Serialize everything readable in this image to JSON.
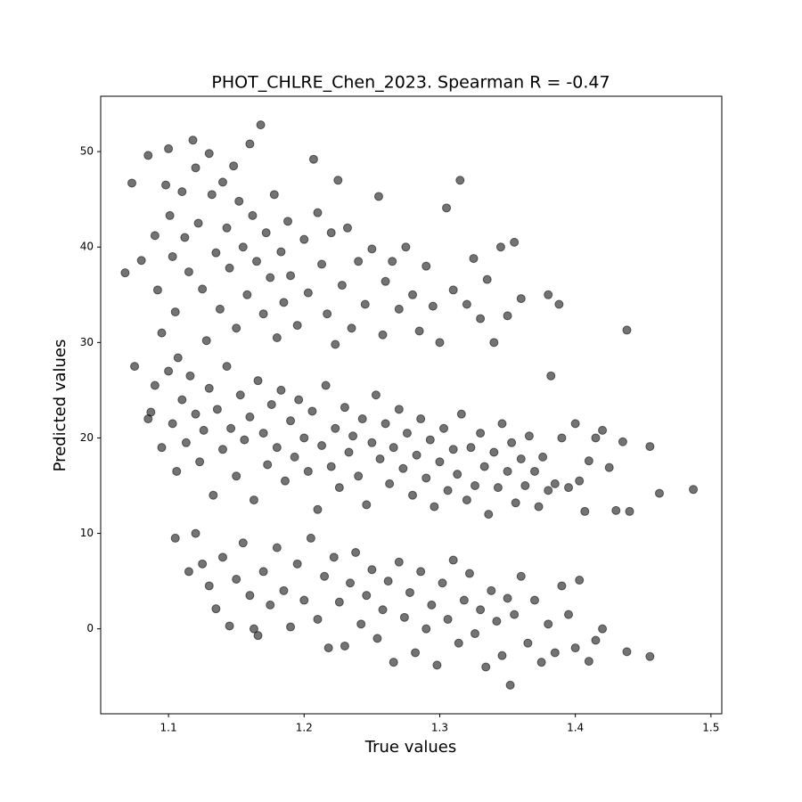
{
  "chart_data": {
    "type": "scatter",
    "title": "PHOT_CHLRE_Chen_2023. Spearman R = -0.47",
    "x_label": "True values",
    "y_label": "Predicted values",
    "color": "#000000",
    "opacity": 0.55,
    "xlim": [
      1.05,
      1.508
    ],
    "ylim": [
      -8.9,
      55.8
    ],
    "xticks": [
      1.1,
      1.2,
      1.3,
      1.4,
      1.5
    ],
    "yticks": [
      0,
      10,
      20,
      30,
      40,
      50
    ],
    "x": [
      1.068,
      1.073,
      1.075,
      1.08,
      1.085,
      1.087,
      1.09,
      1.092,
      1.095,
      1.098,
      1.1,
      1.101,
      1.103,
      1.105,
      1.107,
      1.11,
      1.112,
      1.115,
      1.118,
      1.12,
      1.122,
      1.125,
      1.128,
      1.13,
      1.132,
      1.135,
      1.138,
      1.14,
      1.143,
      1.145,
      1.148,
      1.15,
      1.152,
      1.155,
      1.158,
      1.16,
      1.162,
      1.165,
      1.168,
      1.17,
      1.172,
      1.175,
      1.178,
      1.18,
      1.183,
      1.185,
      1.188,
      1.19,
      1.195,
      1.2,
      1.203,
      1.207,
      1.21,
      1.213,
      1.217,
      1.22,
      1.223,
      1.225,
      1.228,
      1.232,
      1.235,
      1.24,
      1.245,
      1.25,
      1.255,
      1.258,
      1.26,
      1.265,
      1.27,
      1.275,
      1.28,
      1.285,
      1.29,
      1.295,
      1.3,
      1.305,
      1.31,
      1.315,
      1.32,
      1.325,
      1.33,
      1.335,
      1.34,
      1.345,
      1.35,
      1.355,
      1.36,
      1.38,
      1.388,
      1.382,
      1.438,
      1.085,
      1.09,
      1.095,
      1.1,
      1.103,
      1.106,
      1.11,
      1.113,
      1.116,
      1.12,
      1.123,
      1.126,
      1.13,
      1.133,
      1.136,
      1.14,
      1.143,
      1.146,
      1.15,
      1.153,
      1.156,
      1.16,
      1.163,
      1.166,
      1.17,
      1.173,
      1.176,
      1.18,
      1.183,
      1.186,
      1.19,
      1.193,
      1.196,
      1.2,
      1.203,
      1.206,
      1.21,
      1.213,
      1.216,
      1.22,
      1.223,
      1.226,
      1.23,
      1.233,
      1.236,
      1.24,
      1.243,
      1.246,
      1.25,
      1.253,
      1.256,
      1.26,
      1.263,
      1.266,
      1.27,
      1.273,
      1.276,
      1.28,
      1.283,
      1.286,
      1.29,
      1.293,
      1.296,
      1.3,
      1.303,
      1.306,
      1.31,
      1.313,
      1.316,
      1.32,
      1.323,
      1.326,
      1.33,
      1.333,
      1.336,
      1.34,
      1.343,
      1.346,
      1.35,
      1.353,
      1.356,
      1.36,
      1.363,
      1.366,
      1.37,
      1.373,
      1.376,
      1.38,
      1.385,
      1.39,
      1.395,
      1.4,
      1.403,
      1.407,
      1.41,
      1.415,
      1.42,
      1.425,
      1.43,
      1.435,
      1.44,
      1.455,
      1.462,
      1.487,
      1.105,
      1.115,
      1.12,
      1.125,
      1.13,
      1.135,
      1.14,
      1.145,
      1.15,
      1.155,
      1.16,
      1.163,
      1.166,
      1.17,
      1.175,
      1.18,
      1.185,
      1.19,
      1.195,
      1.2,
      1.205,
      1.21,
      1.215,
      1.218,
      1.222,
      1.226,
      1.23,
      1.234,
      1.238,
      1.242,
      1.246,
      1.25,
      1.254,
      1.258,
      1.262,
      1.266,
      1.27,
      1.274,
      1.278,
      1.282,
      1.286,
      1.29,
      1.294,
      1.298,
      1.302,
      1.306,
      1.31,
      1.314,
      1.318,
      1.322,
      1.326,
      1.33,
      1.334,
      1.338,
      1.342,
      1.346,
      1.35,
      1.352,
      1.355,
      1.36,
      1.365,
      1.37,
      1.375,
      1.38,
      1.385,
      1.39,
      1.395,
      1.4,
      1.403,
      1.41,
      1.415,
      1.42,
      1.438,
      1.455
    ],
    "y": [
      37.3,
      46.7,
      27.5,
      38.6,
      49.6,
      22.7,
      41.2,
      35.5,
      31.0,
      46.5,
      50.3,
      43.3,
      39.0,
      33.2,
      28.4,
      45.8,
      41.0,
      37.4,
      51.2,
      48.3,
      42.5,
      35.6,
      30.2,
      49.8,
      45.5,
      39.4,
      33.5,
      46.8,
      42.0,
      37.8,
      48.5,
      31.5,
      44.8,
      40.0,
      35.0,
      50.8,
      43.3,
      38.5,
      52.8,
      33.0,
      41.5,
      36.8,
      45.5,
      30.5,
      39.5,
      34.2,
      42.7,
      37.0,
      31.8,
      40.8,
      35.2,
      49.2,
      43.6,
      38.2,
      33.0,
      41.5,
      29.8,
      47.0,
      36.0,
      42.0,
      31.5,
      38.5,
      34.0,
      39.8,
      45.3,
      30.8,
      36.4,
      38.5,
      33.5,
      40.0,
      35.0,
      31.2,
      38.0,
      33.8,
      30.0,
      44.1,
      35.5,
      47.0,
      34.0,
      38.8,
      32.5,
      36.6,
      30.0,
      40.0,
      32.8,
      40.5,
      34.6,
      35.0,
      34.0,
      26.5,
      31.3,
      22.0,
      25.5,
      19.0,
      27.0,
      21.5,
      16.5,
      24.0,
      19.5,
      26.5,
      22.5,
      17.5,
      20.8,
      25.2,
      14.0,
      23.0,
      18.8,
      27.5,
      21.0,
      16.0,
      24.5,
      19.8,
      22.2,
      13.5,
      26.0,
      20.5,
      17.2,
      23.5,
      19.0,
      25.0,
      15.5,
      21.8,
      18.0,
      24.0,
      20.0,
      16.5,
      22.8,
      12.5,
      19.2,
      25.5,
      17.0,
      21.0,
      14.8,
      23.2,
      18.5,
      20.2,
      16.0,
      22.0,
      13.0,
      19.5,
      24.5,
      17.8,
      21.5,
      15.2,
      19.0,
      23.0,
      16.8,
      20.5,
      14.0,
      18.2,
      22.0,
      15.8,
      19.8,
      12.8,
      17.5,
      21.0,
      14.5,
      18.8,
      16.2,
      22.5,
      13.5,
      19.0,
      15.0,
      20.5,
      17.0,
      12.0,
      18.5,
      14.8,
      21.5,
      16.5,
      19.5,
      13.2,
      17.8,
      15.0,
      20.2,
      16.5,
      12.8,
      18.0,
      14.5,
      15.2,
      20.0,
      14.8,
      21.5,
      15.5,
      12.3,
      17.6,
      20.0,
      20.8,
      16.9,
      12.4,
      19.6,
      12.3,
      19.1,
      14.2,
      14.6,
      9.5,
      6.0,
      10.0,
      6.8,
      4.5,
      2.1,
      7.5,
      0.3,
      5.2,
      9.0,
      3.5,
      0.0,
      -0.7,
      6.0,
      2.5,
      8.5,
      4.0,
      0.2,
      6.8,
      3.0,
      9.5,
      1.0,
      5.5,
      -2.0,
      7.5,
      2.8,
      -1.8,
      4.8,
      8.0,
      0.5,
      3.5,
      6.2,
      -1.0,
      2.0,
      5.0,
      -3.5,
      7.0,
      1.2,
      3.8,
      -2.5,
      6.0,
      0.0,
      2.5,
      -3.8,
      4.8,
      1.0,
      7.2,
      -1.5,
      3.0,
      5.8,
      -0.5,
      2.0,
      -4.0,
      4.0,
      0.8,
      -2.8,
      3.2,
      -5.9,
      1.5,
      5.5,
      -1.5,
      3.0,
      -3.5,
      0.5,
      -2.5,
      4.5,
      1.5,
      -2.0,
      5.1,
      -3.4,
      -1.2,
      0.0,
      -2.4,
      -2.9
    ]
  }
}
